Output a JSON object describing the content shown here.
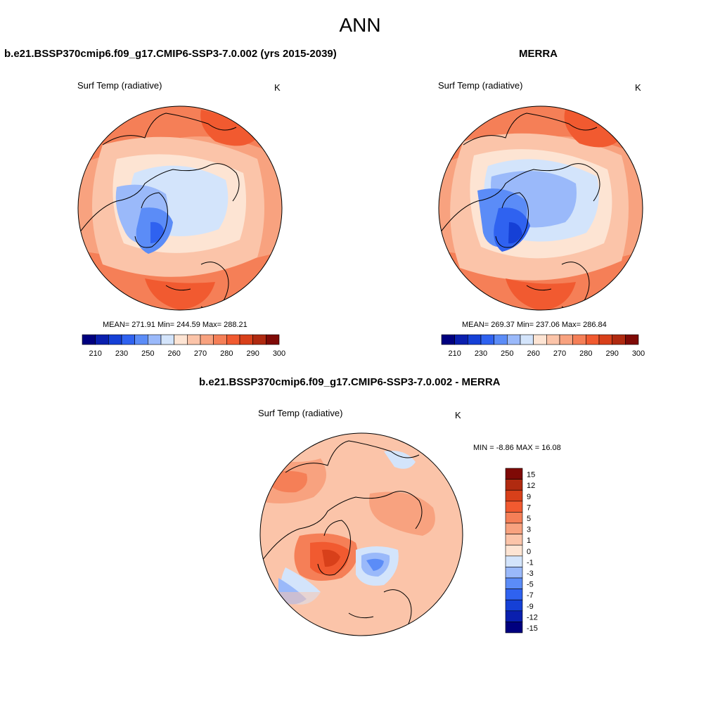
{
  "title": "ANN",
  "panels": [
    {
      "case_title": "b.e21.BSSP370cmip6.f09_g17.CMIP6-SSP3-7.0.002 (yrs 2015-2039)",
      "variable": "Surf Temp (radiative)",
      "units": "K",
      "stats": "MEAN= 271.91  Min= 244.59  Max= 288.21",
      "colorbar_labels": [
        "210",
        "230",
        "250",
        "260",
        "270",
        "280",
        "290",
        "300"
      ]
    },
    {
      "case_title": "MERRA",
      "variable": "Surf Temp (radiative)",
      "units": "K",
      "stats": "MEAN= 269.37  Min= 237.06  Max= 286.84",
      "colorbar_labels": [
        "210",
        "230",
        "250",
        "260",
        "270",
        "280",
        "290",
        "300"
      ]
    },
    {
      "case_title": "b.e21.BSSP370cmip6.f09_g17.CMIP6-SSP3-7.0.002 - MERRA",
      "variable": "Surf Temp (radiative)",
      "units": "K",
      "stats": "MIN =  -8.86 MAX =  16.08",
      "colorbar_labels": [
        "15",
        "12",
        "9",
        "7",
        "5",
        "3",
        "1",
        "0",
        "-1",
        "-3",
        "-5",
        "-7",
        "-9",
        "-12",
        "-15"
      ]
    }
  ],
  "colors": {
    "abs_scale": [
      "#00007f",
      "#0a1fae",
      "#1540d6",
      "#2f62f0",
      "#5b8cf7",
      "#9ab9fa",
      "#d3e4fb",
      "#fde4d3",
      "#fbc4a9",
      "#f8a27f",
      "#f57f57",
      "#f15a30",
      "#d8401a",
      "#b02a10",
      "#7f0a06"
    ],
    "diff_scale": [
      "#7f0a06",
      "#b02a10",
      "#d8401a",
      "#f15a30",
      "#f57f57",
      "#f8a27f",
      "#fbc4a9",
      "#fde4d3",
      "#d3e4fb",
      "#9ab9fa",
      "#5b8cf7",
      "#2f62f0",
      "#1540d6",
      "#0a1fae",
      "#00007f"
    ]
  }
}
